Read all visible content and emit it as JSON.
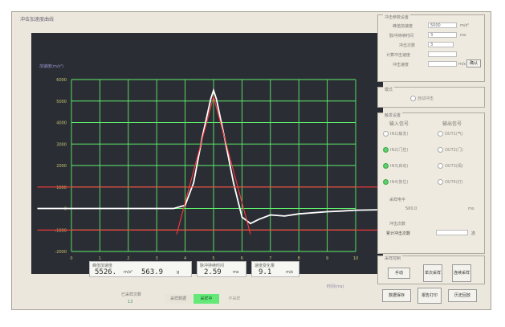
{
  "window": {
    "title": "冲击加速度曲线"
  },
  "plot": {
    "ylabel": "加速度(m/s²)",
    "y_ticks": [
      "6000",
      "5000",
      "4000",
      "3000",
      "2000",
      "1000",
      "0",
      "-1000",
      "-2000"
    ],
    "x_ticks": [
      "0",
      "1",
      "2",
      "3",
      "4",
      "5",
      "6",
      "7",
      "8",
      "9",
      "10"
    ],
    "x_unit": "时间(ms)"
  },
  "chart_data": {
    "type": "line",
    "xlabel": "时间(ms)",
    "ylabel": "加速度(m/s²)",
    "xlim": [
      0,
      10
    ],
    "ylim": [
      -2000,
      6000
    ],
    "grid": true,
    "series": [
      {
        "color": "#ffffff",
        "x": [
          -1.2,
          3.6,
          4.0,
          4.3,
          4.6,
          4.9,
          5.0,
          5.1,
          5.4,
          5.7,
          6.0,
          6.3,
          6.6,
          7.0,
          7.5,
          8.0,
          8.5,
          9.0,
          9.5,
          10.0,
          10.8
        ],
        "y": [
          0,
          0,
          150,
          1200,
          3300,
          5100,
          5500,
          5100,
          3200,
          1200,
          -400,
          -700,
          -500,
          -300,
          -350,
          -250,
          -200,
          -150,
          -120,
          -80,
          -60
        ]
      },
      {
        "color": "#ff3a3a",
        "x": [
          3.7,
          5.0,
          6.3
        ],
        "y": [
          -1200,
          5200,
          -1200
        ]
      },
      {
        "color": "#ff3a3a",
        "x": [
          -1.2,
          10.8
        ],
        "y": [
          1000,
          1000
        ]
      },
      {
        "color": "#ff3a3a",
        "x": [
          -1.2,
          10.8
        ],
        "y": [
          -1000,
          -1000
        ]
      }
    ]
  },
  "readouts": {
    "peak": {
      "label": "峰值加速度",
      "value": "5526.",
      "unit": "m/s²",
      "value2": "563.9",
      "unit2": "g"
    },
    "duration": {
      "label": "脉冲持续时间",
      "value": "2.59",
      "unit": "ms"
    },
    "velocity": {
      "label": "速度变化量",
      "value": "9.1",
      "unit": "m/s"
    }
  },
  "bottom": {
    "label": "已采样次数",
    "count": "13",
    "b1": "采样数据",
    "b2": "采样中",
    "b3": "不采样"
  },
  "panel": {
    "settings": {
      "title": "冲击参数设置",
      "rows": [
        {
          "label": "峰值加速度",
          "value": "5000",
          "unit": "m/s²"
        },
        {
          "label": "脉冲持续时间",
          "value": "3",
          "unit": "ms"
        },
        {
          "label": "冲击次数",
          "value": "3",
          "unit": ""
        },
        {
          "label": "计算冲击速度",
          "value": "",
          "unit": ""
        },
        {
          "label": "冲击速度",
          "value": "",
          "unit": "m/s"
        }
      ],
      "apply": "确认"
    },
    "mode": {
      "title": "模式",
      "option": "自动冲击"
    },
    "io": {
      "title": "触发设置",
      "in_title": "输入信号",
      "out_title": "输出信号",
      "inputs": [
        "IN1(触发)",
        "IN2(门控)",
        "IN3(启动)",
        "IN4(复位)"
      ],
      "outputs": [
        "OUT1(气)",
        "OUT2(门)",
        "OUT3(阀)",
        "OUT4(灯)"
      ],
      "trigger_label": "采样电平",
      "trigger_value": "500.0",
      "trigger_unit": "ms",
      "count_title": "冲击次数",
      "count_label": "累计冲击次数",
      "count_unit": "次"
    },
    "sample": {
      "title": "采样控制",
      "buttons": [
        "手动",
        "单次采样",
        "连续采样"
      ],
      "bottom_buttons": [
        "数据保存",
        "报告打印",
        "历史回放"
      ]
    }
  }
}
